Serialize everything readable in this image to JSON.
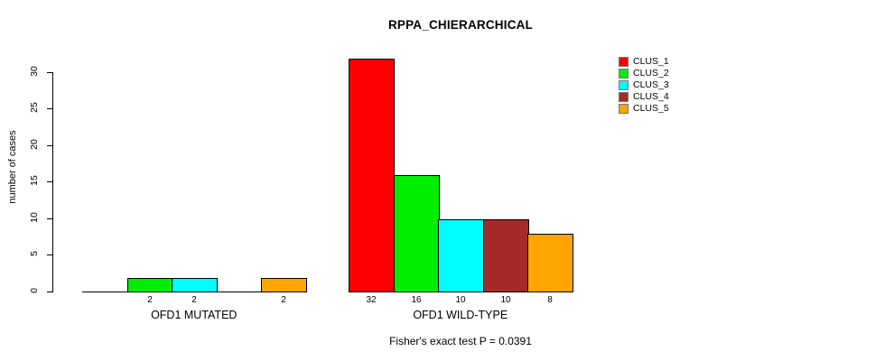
{
  "title": "RPPA_CHIERARCHICAL",
  "footer": "Fisher's exact test P = 0.0391",
  "y_axis": {
    "label": "number of cases",
    "ticks": [
      0,
      5,
      10,
      15,
      20,
      25,
      30
    ]
  },
  "chart_data": {
    "type": "bar",
    "title": "RPPA_CHIERARCHICAL",
    "xlabel": "",
    "ylabel": "number of cases",
    "ylim": [
      0,
      32
    ],
    "grid": false,
    "legend_position": "top-right",
    "annotation": "Fisher's exact test P = 0.0391",
    "categories": [
      "OFD1 MUTATED",
      "OFD1 WILD-TYPE"
    ],
    "series": [
      {
        "name": "CLUS_1",
        "color": "#FF0000",
        "values": [
          0,
          32
        ]
      },
      {
        "name": "CLUS_2",
        "color": "#00EE00",
        "values": [
          2,
          16
        ]
      },
      {
        "name": "CLUS_3",
        "color": "#00FFFF",
        "values": [
          2,
          10
        ]
      },
      {
        "name": "CLUS_4",
        "color": "#A52A2A",
        "values": [
          0,
          10
        ]
      },
      {
        "name": "CLUS_5",
        "color": "#FFA500",
        "values": [
          2,
          8
        ]
      }
    ]
  }
}
